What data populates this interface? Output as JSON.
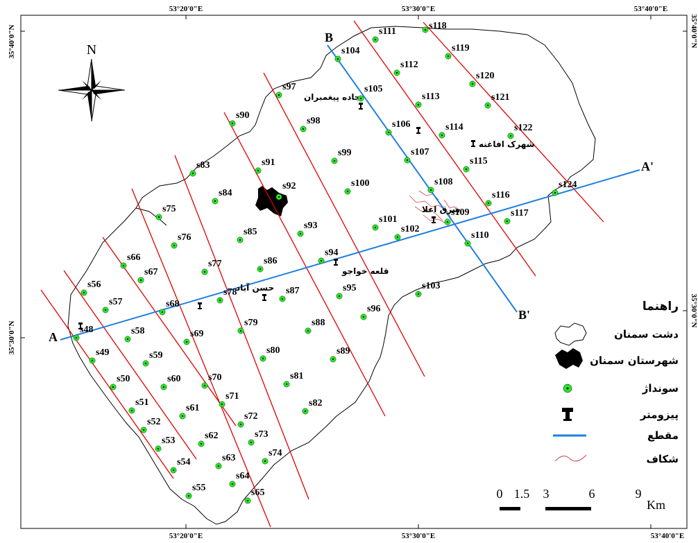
{
  "map": {
    "coords_top": [
      "53°20'0\"E",
      "53°30'0\"E",
      "53°40'0\"E"
    ],
    "coords_bottom": [
      "53°20'0\"E",
      "53°30'0\"E",
      "53°40'0\"E"
    ],
    "coords_left": [
      "35°40'0\"N",
      "35°30'0\"N"
    ],
    "coords_right": [
      "35°40'0\"N",
      "35°30'0\"N"
    ],
    "north_label": "N",
    "section_labels": {
      "a": "A",
      "a_prime": "A'",
      "b": "B",
      "b_prime": "B'"
    },
    "places": {
      "jadeh": "جاده پیغمبران",
      "afaghaneh": "شهرک افاغنه",
      "sharq": "شرق اعلا",
      "ghaleh": "قلعه خواجو",
      "hasan": "حسن آباد"
    },
    "soundings": [
      "s48",
      "s49",
      "s50",
      "s51",
      "s52",
      "s53",
      "s54",
      "s55",
      "s56",
      "s57",
      "s58",
      "s59",
      "s60",
      "s61",
      "s62",
      "s63",
      "s64",
      "s65",
      "s66",
      "s67",
      "s68",
      "s69",
      "s70",
      "s71",
      "s72",
      "s73",
      "s74",
      "s75",
      "s76",
      "s77",
      "s78",
      "s79",
      "s80",
      "s81",
      "s82",
      "s83",
      "s84",
      "s85",
      "s86",
      "s87",
      "s88",
      "s89",
      "s90",
      "s91",
      "s92",
      "s93",
      "s94",
      "s95",
      "s96",
      "s97",
      "s98",
      "s99",
      "s100",
      "s101",
      "s102",
      "s103",
      "s104",
      "s105",
      "s106",
      "s107",
      "s108",
      "s109",
      "s110",
      "s111",
      "s112",
      "s113",
      "s114",
      "s115",
      "s116",
      "s117",
      "s118",
      "s119",
      "s120",
      "s121",
      "s122",
      "s124"
    ],
    "colors": {
      "sounding": "#27e827",
      "sounding_line": "#e00000",
      "section": "#1e7fe0",
      "boundary": "#000000",
      "fault": "#d04040"
    }
  },
  "legend": {
    "title": "راهنما",
    "items": [
      {
        "id": "plain",
        "label": "دشت سمنان",
        "icon": "outline-shape-icon"
      },
      {
        "id": "city",
        "label": "شهرستان سمنان",
        "icon": "city-blob-icon"
      },
      {
        "id": "sounding",
        "label": "سونداژ",
        "icon": "sounding-dot-icon"
      },
      {
        "id": "piezometer",
        "label": "پیزومتر",
        "icon": "piezometer-icon"
      },
      {
        "id": "section",
        "label": "مقطع",
        "icon": "section-line-icon"
      },
      {
        "id": "fault",
        "label": "شکاف",
        "icon": "fault-line-icon"
      }
    ]
  },
  "scale_bar": {
    "ticks": [
      "0",
      "1.5",
      "3",
      "6",
      "9"
    ],
    "unit": "Km"
  }
}
